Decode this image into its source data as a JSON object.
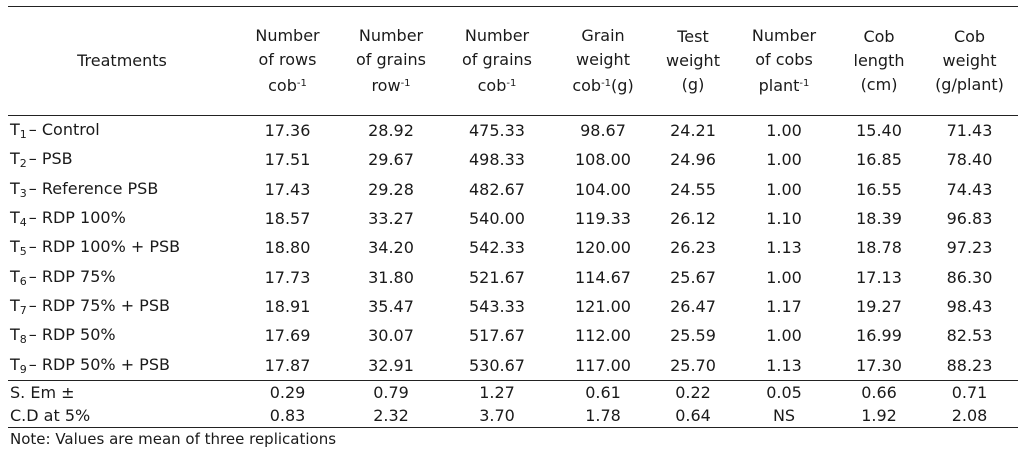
{
  "headers": [
    {
      "lines": [
        "Treatments"
      ]
    },
    {
      "lines": [
        "Number",
        "of rows",
        "cob"
      ],
      "sup": "-1"
    },
    {
      "lines": [
        "Number",
        "of grains",
        "row"
      ],
      "sup": "-1"
    },
    {
      "lines": [
        "Number",
        "of grains",
        "cob"
      ],
      "sup": "-1"
    },
    {
      "lines": [
        "Grain",
        "weight",
        "cob"
      ],
      "sup": "-1",
      "suffix": "(g)"
    },
    {
      "lines": [
        "Test",
        "weight",
        "(g)"
      ]
    },
    {
      "lines": [
        "Number",
        "of cobs",
        "plant"
      ],
      "sup": "-1"
    },
    {
      "lines": [
        "Cob",
        "length",
        "(cm)"
      ]
    },
    {
      "lines": [
        "Cob",
        "weight",
        "(g/plant)"
      ]
    }
  ],
  "rows": [
    {
      "t": "T",
      "sub": "1",
      "name": "– Control",
      "v": [
        "17.36",
        "28.92",
        "475.33",
        "98.67",
        "24.21",
        "1.00",
        "15.40",
        "71.43"
      ]
    },
    {
      "t": "T",
      "sub": "2",
      "name": "– PSB",
      "v": [
        "17.51",
        "29.67",
        "498.33",
        "108.00",
        "24.96",
        "1.00",
        "16.85",
        "78.40"
      ]
    },
    {
      "t": "T",
      "sub": "3",
      "name": "– Reference PSB",
      "v": [
        "17.43",
        "29.28",
        "482.67",
        "104.00",
        "24.55",
        "1.00",
        "16.55",
        "74.43"
      ]
    },
    {
      "t": "T",
      "sub": "4",
      "name": "– RDP 100%",
      "v": [
        "18.57",
        "33.27",
        "540.00",
        "119.33",
        "26.12",
        "1.10",
        "18.39",
        "96.83"
      ]
    },
    {
      "t": "T",
      "sub": "5",
      "name": "– RDP 100% + PSB",
      "v": [
        "18.80",
        "34.20",
        "542.33",
        "120.00",
        "26.23",
        "1.13",
        "18.78",
        "97.23"
      ]
    },
    {
      "t": "T",
      "sub": "6",
      "name": "– RDP 75%",
      "v": [
        "17.73",
        "31.80",
        "521.67",
        "114.67",
        "25.67",
        "1.00",
        "17.13",
        "86.30"
      ]
    },
    {
      "t": "T",
      "sub": "7",
      "name": "– RDP 75% + PSB",
      "v": [
        "18.91",
        "35.47",
        "543.33",
        "121.00",
        "26.47",
        "1.17",
        "19.27",
        "98.43"
      ]
    },
    {
      "t": "T",
      "sub": "8",
      "name": "– RDP 50%",
      "v": [
        "17.69",
        "30.07",
        "517.67",
        "112.00",
        "25.59",
        "1.00",
        "16.99",
        "82.53"
      ]
    },
    {
      "t": "T",
      "sub": "9",
      "name": "– RDP 50% + PSB",
      "v": [
        "17.87",
        "32.91",
        "530.67",
        "117.00",
        "25.70",
        "1.13",
        "17.30",
        "88.23"
      ]
    }
  ],
  "stats": [
    {
      "label": "S. Em ±",
      "v": [
        "0.29",
        "0.79",
        "1.27",
        "0.61",
        "0.22",
        "0.05",
        "0.66",
        "0.71"
      ]
    },
    {
      "label": "C.D at 5%",
      "v": [
        "0.83",
        "2.32",
        "3.70",
        "1.78",
        "0.64",
        "NS",
        "1.92",
        "2.08"
      ]
    }
  ],
  "note": "Note: Values are mean of three replications"
}
